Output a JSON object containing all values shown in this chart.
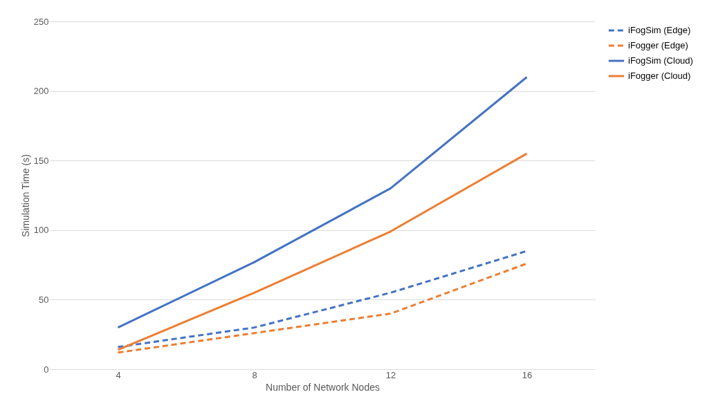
{
  "chart_data": {
    "type": "line",
    "xlabel": "Number of Network Nodes",
    "ylabel": "Simulation Time (s)",
    "categories": [
      "4",
      "8",
      "12",
      "16"
    ],
    "series": [
      {
        "name": "iFogSim (Edge)",
        "color": "#4472c4",
        "line_style": "dashed",
        "values": [
          16,
          30,
          55,
          85
        ]
      },
      {
        "name": "iFogger (Edge)",
        "color": "#ed7d31",
        "line_style": "dashed",
        "values": [
          12,
          26,
          40,
          76
        ]
      },
      {
        "name": "iFogSim (Cloud)",
        "color": "#4472c4",
        "line_style": "solid",
        "values": [
          30,
          77,
          130,
          210
        ]
      },
      {
        "name": "iFogger (Cloud)",
        "color": "#ed7d31",
        "line_style": "solid",
        "values": [
          14,
          55,
          99,
          155
        ]
      }
    ],
    "ylim": [
      0,
      250
    ],
    "yticks": [
      0,
      50,
      100,
      150,
      200,
      250
    ],
    "grid": "y",
    "legend": "right",
    "marker": "none"
  }
}
